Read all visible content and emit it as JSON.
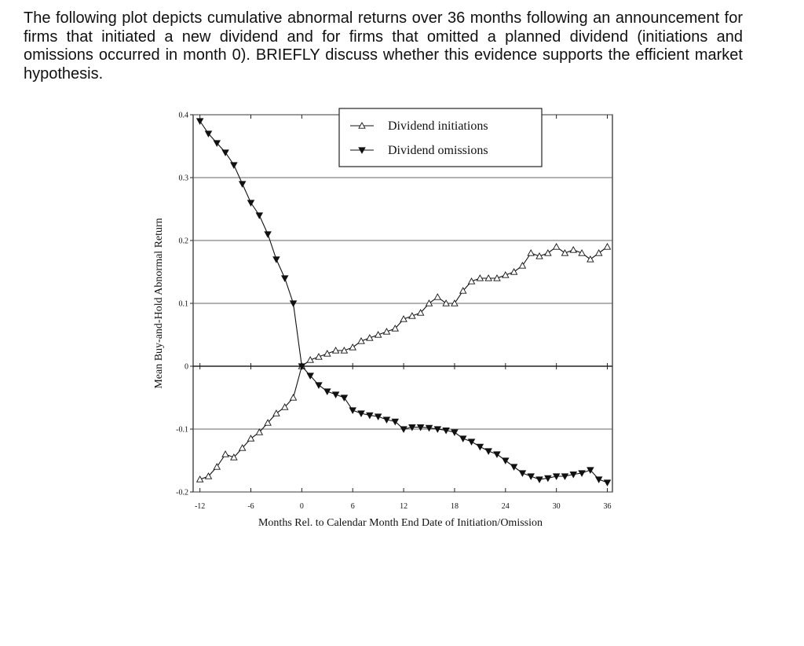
{
  "question": "The following plot depicts cumulative abnormal returns over 36 months following an announcement for firms that initiated a new dividend and for firms that omitted a planned dividend (initiations and omissions occurred in month 0).   BRIEFLY discuss whether this evidence supports the efficient market hypothesis.",
  "chart_data": {
    "type": "line",
    "x_label": "Months Rel. to Calendar Month End Date of Initiation/Omission",
    "y_label": "Mean Buy-and-Hold Abnormal Return",
    "x": [
      -12,
      -11,
      -10,
      -9,
      -8,
      -7,
      -6,
      -5,
      -4,
      -3,
      -2,
      -1,
      0,
      1,
      2,
      3,
      4,
      5,
      6,
      7,
      8,
      9,
      10,
      11,
      12,
      13,
      14,
      15,
      16,
      17,
      18,
      19,
      20,
      21,
      22,
      23,
      24,
      25,
      26,
      27,
      28,
      29,
      30,
      31,
      32,
      33,
      34,
      35,
      36
    ],
    "series": [
      {
        "name": "Dividend initiations",
        "color": "#111111",
        "marker": "triangle-up-open",
        "values": [
          -0.18,
          -0.175,
          -0.16,
          -0.14,
          -0.145,
          -0.13,
          -0.115,
          -0.105,
          -0.09,
          -0.075,
          -0.065,
          -0.05,
          0,
          0.01,
          0.015,
          0.02,
          0.025,
          0.025,
          0.03,
          0.04,
          0.045,
          0.05,
          0.055,
          0.06,
          0.075,
          0.08,
          0.085,
          0.1,
          0.11,
          0.1,
          0.1,
          0.12,
          0.135,
          0.14,
          0.14,
          0.14,
          0.145,
          0.15,
          0.16,
          0.18,
          0.175,
          0.18,
          0.19,
          0.18,
          0.185,
          0.18,
          0.17,
          0.18,
          0.19
        ]
      },
      {
        "name": "Dividend omissions",
        "color": "#111111",
        "marker": "triangle-down-filled",
        "values": [
          0.39,
          0.37,
          0.355,
          0.34,
          0.32,
          0.29,
          0.26,
          0.24,
          0.21,
          0.17,
          0.14,
          0.1,
          0,
          -0.015,
          -0.03,
          -0.04,
          -0.045,
          -0.05,
          -0.07,
          -0.075,
          -0.078,
          -0.08,
          -0.085,
          -0.088,
          -0.1,
          -0.097,
          -0.097,
          -0.098,
          -0.1,
          -0.102,
          -0.105,
          -0.115,
          -0.12,
          -0.128,
          -0.135,
          -0.14,
          -0.15,
          -0.16,
          -0.17,
          -0.175,
          -0.18,
          -0.178,
          -0.175,
          -0.175,
          -0.172,
          -0.17,
          -0.165,
          -0.18,
          -0.185
        ]
      }
    ],
    "xlim": [
      -12.8,
      36.6
    ],
    "ylim": [
      -0.2,
      0.4
    ],
    "xticks": [
      -12,
      -6,
      0,
      6,
      12,
      18,
      24,
      30,
      36
    ],
    "yticks": [
      -0.2,
      -0.1,
      0,
      0.1,
      0.2,
      0.3,
      0.4
    ],
    "grid": true,
    "legend": "upper right"
  }
}
